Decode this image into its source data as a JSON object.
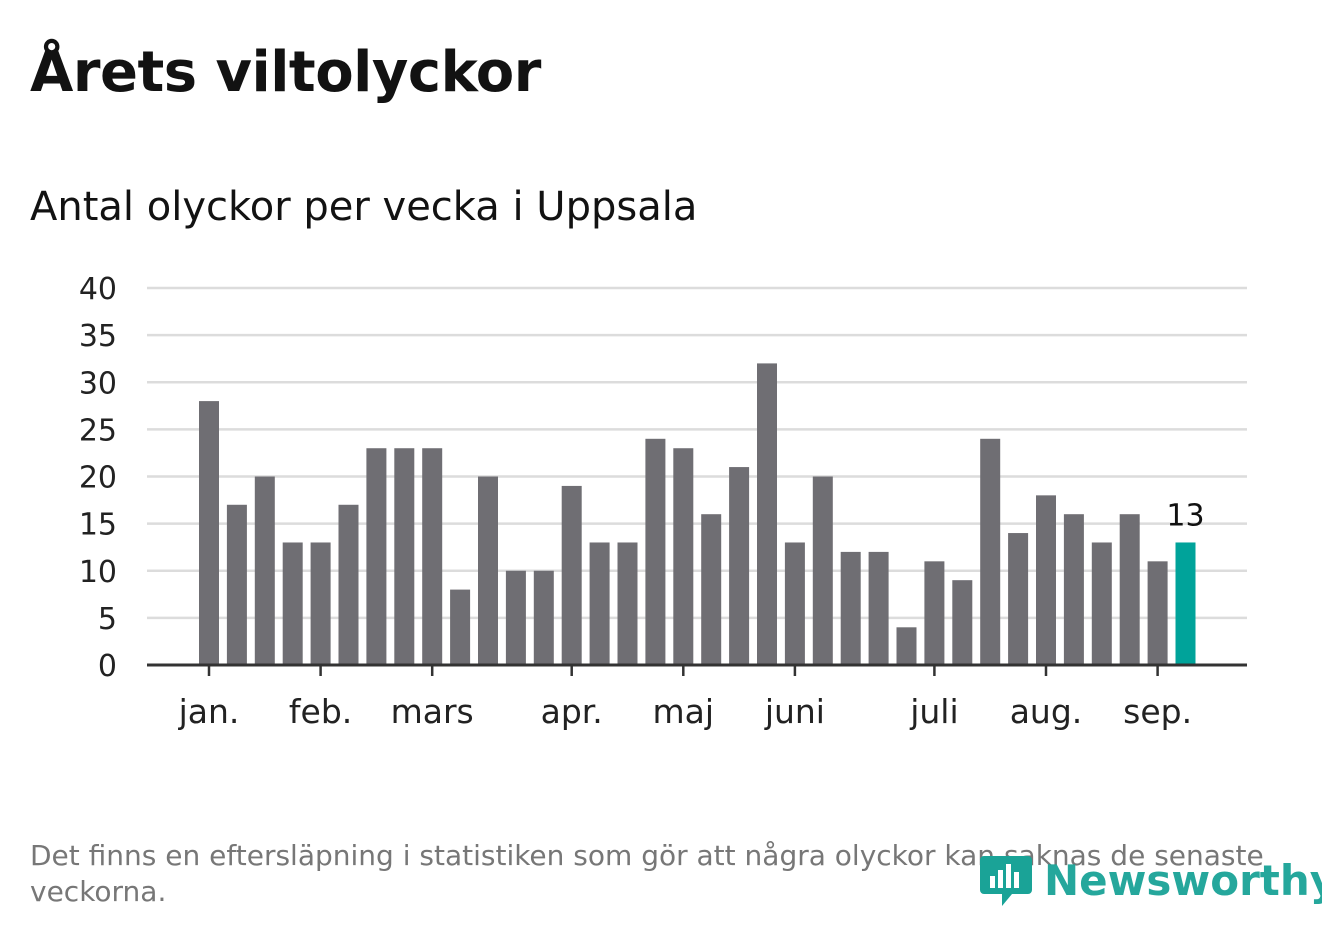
{
  "header": {
    "title": "Årets viltolyckor",
    "subtitle": "Antal olyckor per vecka i Uppsala"
  },
  "chart_data": {
    "type": "bar",
    "title": "Årets viltolyckor",
    "subtitle": "Antal olyckor per vecka i Uppsala",
    "xlabel": "",
    "ylabel": "",
    "ylim": [
      0,
      40
    ],
    "yticks": [
      0,
      5,
      10,
      15,
      20,
      25,
      30,
      35,
      40
    ],
    "grid": true,
    "values": [
      28,
      17,
      20,
      13,
      13,
      17,
      23,
      23,
      23,
      8,
      20,
      10,
      10,
      19,
      13,
      13,
      24,
      23,
      16,
      21,
      32,
      13,
      20,
      12,
      12,
      4,
      11,
      9,
      24,
      14,
      18,
      16,
      13,
      16,
      11,
      13
    ],
    "highlight_index": 35,
    "highlight_label": "13",
    "month_ticks": [
      {
        "label": "jan.",
        "bar_index": 0
      },
      {
        "label": "feb.",
        "bar_index": 4
      },
      {
        "label": "mars",
        "bar_index": 8
      },
      {
        "label": "apr.",
        "bar_index": 13
      },
      {
        "label": "maj",
        "bar_index": 17
      },
      {
        "label": "juni",
        "bar_index": 21
      },
      {
        "label": "juli",
        "bar_index": 26
      },
      {
        "label": "aug.",
        "bar_index": 30
      },
      {
        "label": "sep.",
        "bar_index": 34
      }
    ],
    "colors": {
      "bar": "#6f6e73",
      "highlight": "#00a39a",
      "grid": "#dcdcdc",
      "axis": "#333333"
    }
  },
  "footer": {
    "note": "Det finns en eftersläpning i statistiken som gör att några olyckor kan saknas de senaste veckorna.",
    "brand": "Newsworthy",
    "brand_icon": "newsworthy-logo-icon",
    "brand_color": "#1aa397"
  }
}
